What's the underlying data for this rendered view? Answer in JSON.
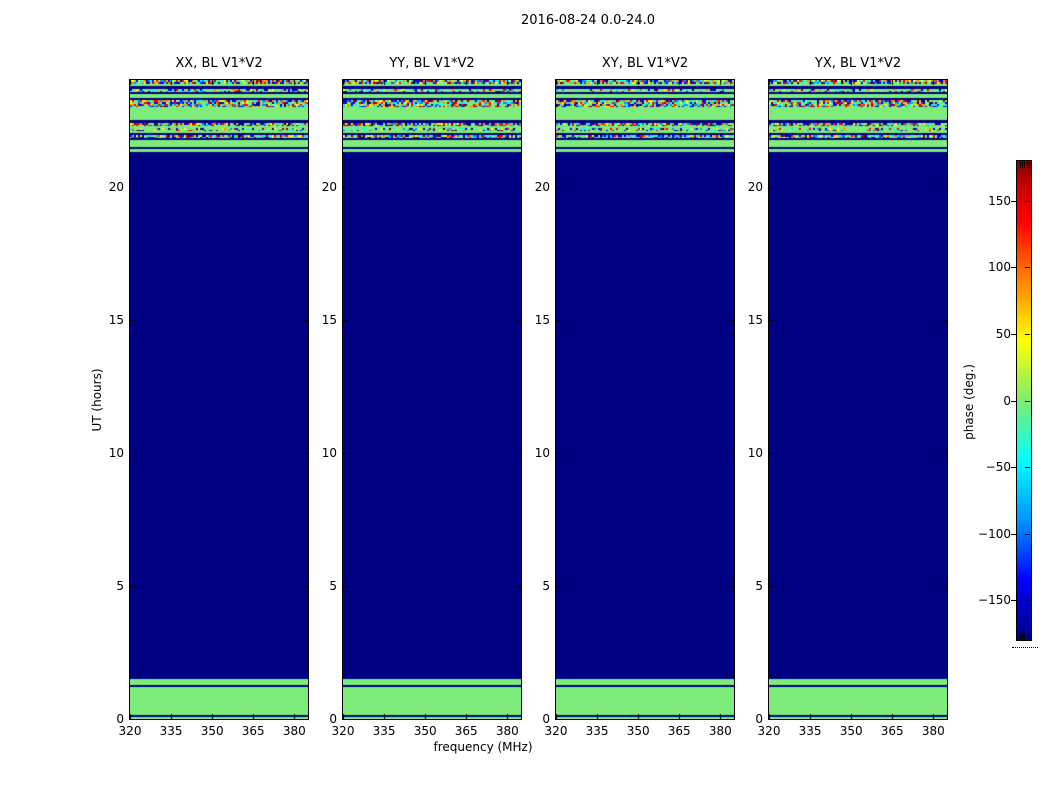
{
  "title": "2016-08-24 0.0-24.0",
  "axes": {
    "xlabel": "frequency (MHz)",
    "ylabel": "UT (hours)",
    "x_tick_labels": [
      "320",
      "335",
      "350",
      "365",
      "380"
    ],
    "x_tick_values": [
      320,
      335,
      350,
      365,
      380
    ],
    "y_tick_labels": [
      "0",
      "5",
      "10",
      "15",
      "20"
    ],
    "y_tick_values": [
      0,
      5,
      10,
      15,
      20
    ]
  },
  "colorbar": {
    "label": "phase (deg.)",
    "tick_labels": [
      "150",
      "100",
      "50",
      "0",
      "−50",
      "−100",
      "−150"
    ],
    "tick_values": [
      150,
      100,
      50,
      0,
      -50,
      -100,
      -150
    ],
    "range": [
      -180,
      180
    ],
    "colormap": "jet"
  },
  "chart_data": {
    "type": "heatmap",
    "title": "2016-08-24 0.0-24.0",
    "xlabel": "frequency (MHz)",
    "ylabel": "UT (hours)",
    "x_range_mhz": [
      320,
      385
    ],
    "y_range_hours": [
      0,
      24
    ],
    "value_label": "phase (deg.)",
    "value_range_deg": [
      -180,
      180
    ],
    "colormap": "jet",
    "panels": [
      {
        "label": "XX, BL V1*V2",
        "seed": 11
      },
      {
        "label": "YY, BL V1*V2",
        "seed": 23
      },
      {
        "label": "XY, BL V1*V2",
        "seed": 37
      },
      {
        "label": "YX, BL V1*V2",
        "seed": 51
      }
    ],
    "bands": [
      {
        "from": 24.0,
        "to": 23.85,
        "type": "noise"
      },
      {
        "from": 23.85,
        "to": 23.76,
        "type": "green"
      },
      {
        "from": 23.76,
        "to": 23.68,
        "type": "navy"
      },
      {
        "from": 23.68,
        "to": 23.56,
        "type": "noise_sparse"
      },
      {
        "from": 23.56,
        "to": 23.48,
        "type": "navy"
      },
      {
        "from": 23.48,
        "to": 23.32,
        "type": "green"
      },
      {
        "from": 23.32,
        "to": 23.24,
        "type": "navy"
      },
      {
        "from": 23.24,
        "to": 22.97,
        "type": "noise"
      },
      {
        "from": 22.97,
        "to": 22.48,
        "type": "green"
      },
      {
        "from": 22.48,
        "to": 22.4,
        "type": "navy"
      },
      {
        "from": 22.4,
        "to": 22.27,
        "type": "noise"
      },
      {
        "from": 22.27,
        "to": 22.19,
        "type": "green"
      },
      {
        "from": 22.19,
        "to": 22.09,
        "type": "noise_sparse"
      },
      {
        "from": 22.09,
        "to": 22.01,
        "type": "green"
      },
      {
        "from": 22.01,
        "to": 21.93,
        "type": "navy"
      },
      {
        "from": 21.93,
        "to": 21.83,
        "type": "noise"
      },
      {
        "from": 21.83,
        "to": 21.76,
        "type": "navy"
      },
      {
        "from": 21.76,
        "to": 21.47,
        "type": "green"
      },
      {
        "from": 21.47,
        "to": 21.39,
        "type": "navy"
      },
      {
        "from": 21.39,
        "to": 21.31,
        "type": "green"
      },
      {
        "from": 21.31,
        "to": 1.5,
        "type": "navy"
      },
      {
        "from": 1.5,
        "to": 1.28,
        "type": "green"
      },
      {
        "from": 1.28,
        "to": 1.22,
        "type": "navy"
      },
      {
        "from": 1.22,
        "to": 0.15,
        "type": "green"
      },
      {
        "from": 0.15,
        "to": 0.08,
        "type": "navy"
      },
      {
        "from": 0.08,
        "to": 0.0,
        "type": "green"
      }
    ],
    "colors": {
      "navy": "#000082",
      "green": "#7dec7a",
      "noise_palette": [
        "#000082",
        "#0000ff",
        "#0094ff",
        "#00ffff",
        "#ffff00",
        "#ff8c00",
        "#ff0000",
        "#990000"
      ],
      "noise_weights": [
        0.08,
        0.16,
        0.1,
        0.16,
        0.12,
        0.12,
        0.14,
        0.06
      ]
    }
  }
}
